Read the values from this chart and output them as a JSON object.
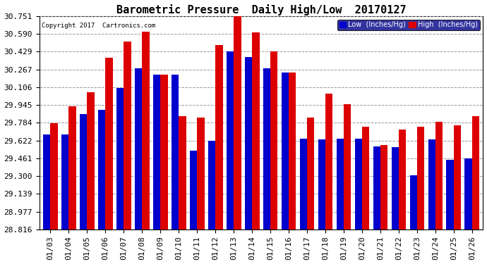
{
  "title": "Barometric Pressure  Daily High/Low  20170127",
  "copyright": "Copyright 2017  Cartronics.com",
  "legend_low": "Low  (Inches/Hg)",
  "legend_high": "High  (Inches/Hg)",
  "dates": [
    "01/03",
    "01/04",
    "01/05",
    "01/06",
    "01/07",
    "01/08",
    "01/09",
    "01/10",
    "01/11",
    "01/12",
    "01/13",
    "01/14",
    "01/15",
    "01/16",
    "01/17",
    "01/18",
    "01/19",
    "01/20",
    "01/21",
    "01/22",
    "01/23",
    "01/24",
    "01/25",
    "01/26"
  ],
  "low": [
    29.68,
    29.68,
    29.86,
    29.9,
    30.1,
    30.28,
    30.22,
    30.22,
    29.53,
    29.62,
    30.43,
    30.38,
    30.28,
    30.24,
    29.64,
    29.63,
    29.64,
    29.64,
    29.57,
    29.56,
    29.31,
    29.63,
    29.45,
    29.46
  ],
  "high": [
    29.78,
    29.93,
    30.06,
    30.37,
    30.52,
    30.61,
    30.22,
    29.84,
    29.83,
    30.49,
    30.75,
    30.6,
    30.43,
    30.24,
    29.83,
    30.05,
    29.95,
    29.75,
    29.58,
    29.72,
    29.75,
    29.79,
    29.76,
    29.84
  ],
  "ymin": 28.816,
  "ymax": 30.751,
  "yticks": [
    28.816,
    28.977,
    29.139,
    29.3,
    29.461,
    29.622,
    29.784,
    29.945,
    30.106,
    30.267,
    30.429,
    30.59,
    30.751
  ],
  "low_color": "#0000cc",
  "high_color": "#dd0000",
  "background_color": "#ffffff",
  "grid_color": "#999999",
  "title_fontsize": 11,
  "tick_fontsize": 8,
  "bar_width": 0.4
}
